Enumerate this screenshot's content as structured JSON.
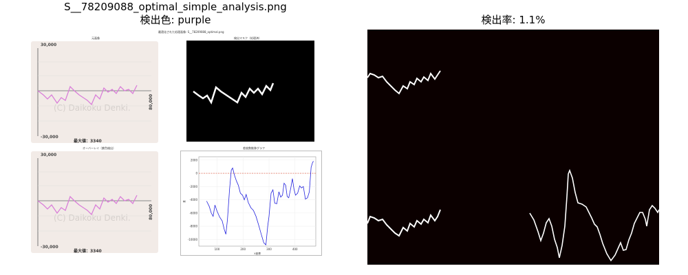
{
  "figure": {
    "suptitle": "S__78209088_optimal_simple_analysis.png",
    "subtitle": "検出色: purple",
    "right_title": "検出率: 1.1%"
  },
  "inner_image": {
    "caption_top": "最適化された処理画像: S__78209088_optimal.png",
    "graph_top_caption": "元画像",
    "mask_caption": "検出マスク（処理済）",
    "graph_bottom_caption": "オーバーレイ（紫色検出）",
    "diff_caption": "差枚数推移グラフ",
    "graph": {
      "y_top_label": "30,000",
      "y_bottom_label": "-30,000",
      "side_label": "80,000",
      "watermark": "(C) Daikoku Denki.",
      "max_label": "最大値：3340",
      "line_color": "#d97fd9"
    },
    "diff_chart": {
      "y_ticks": [
        "2000",
        "0",
        "-2000",
        "-4000",
        "-6000",
        "-8000",
        "-10000"
      ],
      "x_ticks": [
        "100",
        "200",
        "300",
        "400"
      ],
      "ylabel": "差",
      "xlabel": "X座標",
      "line_color": "#2222dd",
      "zero_line_color": "#e0553a"
    }
  },
  "chart_data": {
    "type": "line",
    "title": "差枚数推移グラフ",
    "xlabel": "X座標",
    "ylabel": "差",
    "xlim": [
      30,
      480
    ],
    "ylim": [
      -11000,
      2500
    ],
    "series": [
      {
        "values": [
          [
            60,
            -4200
          ],
          [
            70,
            -5000
          ],
          [
            78,
            -6000
          ],
          [
            85,
            -6500
          ],
          [
            92,
            -4800
          ],
          [
            100,
            -5700
          ],
          [
            110,
            -6600
          ],
          [
            120,
            -7200
          ],
          [
            128,
            -8500
          ],
          [
            134,
            -9200
          ],
          [
            140,
            -7000
          ],
          [
            148,
            -2500
          ],
          [
            155,
            500
          ],
          [
            160,
            800
          ],
          [
            168,
            -400
          ],
          [
            175,
            -1200
          ],
          [
            182,
            -1800
          ],
          [
            190,
            -3000
          ],
          [
            198,
            -3300
          ],
          [
            205,
            -4000
          ],
          [
            212,
            -3200
          ],
          [
            220,
            -4400
          ],
          [
            230,
            -5200
          ],
          [
            240,
            -5600
          ],
          [
            250,
            -6500
          ],
          [
            260,
            -7800
          ],
          [
            270,
            -9200
          ],
          [
            280,
            -10500
          ],
          [
            288,
            -10800
          ],
          [
            295,
            -8000
          ],
          [
            300,
            -6500
          ],
          [
            308,
            -3000
          ],
          [
            315,
            -2500
          ],
          [
            322,
            -4500
          ],
          [
            330,
            -4600
          ],
          [
            338,
            -2800
          ],
          [
            345,
            -3600
          ],
          [
            352,
            -3300
          ],
          [
            358,
            -1500
          ],
          [
            364,
            -1800
          ],
          [
            370,
            -3500
          ],
          [
            376,
            -3700
          ],
          [
            384,
            -2200
          ],
          [
            390,
            -800
          ],
          [
            396,
            -2400
          ],
          [
            402,
            -3300
          ],
          [
            410,
            -3000
          ],
          [
            418,
            -1900
          ],
          [
            425,
            -2200
          ],
          [
            432,
            -2000
          ],
          [
            440,
            -3900
          ],
          [
            448,
            -3700
          ],
          [
            455,
            -2800
          ],
          [
            462,
            900
          ],
          [
            468,
            1700
          ],
          [
            472,
            1800
          ]
        ]
      }
    ]
  }
}
